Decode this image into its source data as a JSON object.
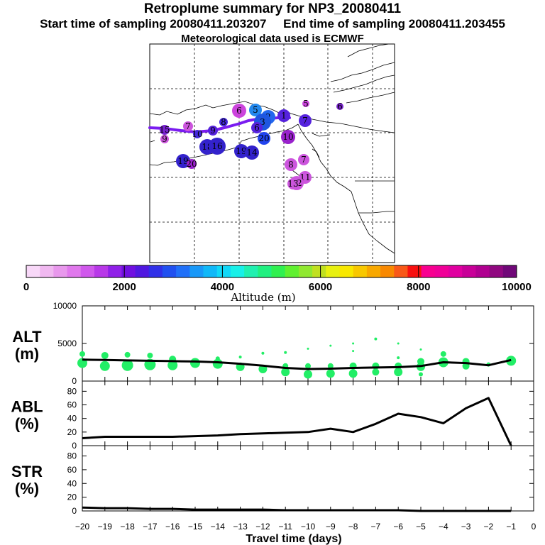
{
  "header": {
    "title": "Retroplume summary for NP3_20080411",
    "start_label": "Start time of sampling 20080411.203207",
    "end_label": "End time of sampling 20080411.203455",
    "met_label": "Meteorological data used is ECMWF"
  },
  "colors": {
    "track": "#7a1cf0",
    "alt_points": "#22ee66",
    "line": "#000000",
    "colorbar": [
      "#f8d8f8",
      "#f0b8f0",
      "#e898ec",
      "#e078ec",
      "#d058ec",
      "#b838e8",
      "#9020e8",
      "#7010e0",
      "#5018e0",
      "#3030e8",
      "#2050f0",
      "#2070f8",
      "#1898f8",
      "#10b8f8",
      "#10d8f8",
      "#18f0e8",
      "#20f0b0",
      "#20f080",
      "#30f050",
      "#60f030",
      "#90e830",
      "#c0e020",
      "#e8f010",
      "#f8e800",
      "#f8c800",
      "#f8a800",
      "#f88800",
      "#f85818",
      "#f81010",
      "#f80090",
      "#f00098",
      "#e000a0",
      "#c80098",
      "#b00090",
      "#900880",
      "#700878"
    ]
  },
  "map": {
    "points": [
      {
        "label": "6",
        "color": "#cc44dd",
        "r": 10
      },
      {
        "label": "5",
        "color": "#2288ee",
        "r": 9
      },
      {
        "label": "5",
        "color": "#cc44dd",
        "r": 5
      },
      {
        "label": "6",
        "color": "#7722cc",
        "r": 5
      },
      {
        "label": "2",
        "color": "#2266ee",
        "r": 10
      },
      {
        "label": "3",
        "color": "#1e56e0",
        "r": 12
      },
      {
        "label": "1",
        "color": "#5522dd",
        "r": 9
      },
      {
        "label": "7",
        "color": "#5522dd",
        "r": 9
      },
      {
        "label": "6",
        "color": "#5522dd",
        "r": 8
      },
      {
        "label": "8",
        "color": "#4428dd",
        "r": 6
      },
      {
        "label": "7",
        "color": "#cc55dd",
        "r": 7
      },
      {
        "label": "15",
        "color": "#7722cc",
        "r": 7
      },
      {
        "label": "9",
        "color": "#cc55dd",
        "r": 6
      },
      {
        "label": "10",
        "color": "#4428dd",
        "r": 6
      },
      {
        "label": "9",
        "color": "#5522dd",
        "r": 7
      },
      {
        "label": "18",
        "color": "#3322cc",
        "r": 11
      },
      {
        "label": "16",
        "color": "#3322cc",
        "r": 12
      },
      {
        "label": "19",
        "color": "#3322cc",
        "r": 10
      },
      {
        "label": "20",
        "color": "#2244ee",
        "r": 9
      },
      {
        "label": "14",
        "color": "#3322cc",
        "r": 10
      },
      {
        "label": "10",
        "color": "#9922cc",
        "r": 10
      },
      {
        "label": "8",
        "color": "#cc55dd",
        "r": 9
      },
      {
        "label": "7",
        "color": "#cc55dd",
        "r": 8
      },
      {
        "label": "11",
        "color": "#cc55dd",
        "r": 9
      },
      {
        "label": "12",
        "color": "#cc55dd",
        "r": 10
      },
      {
        "label": "13",
        "color": "#cc55dd",
        "r": 8
      },
      {
        "label": "19",
        "color": "#3322cc",
        "r": 10
      },
      {
        "label": "20",
        "color": "#9922cc",
        "r": 7
      }
    ]
  },
  "colorbar": {
    "ticks": [
      "0",
      "2000",
      "4000",
      "6000",
      "8000",
      "10000"
    ],
    "label": "Altitude (m)"
  },
  "chart_data": [
    {
      "type": "line",
      "panel": "ALT",
      "ylabel_line1": "ALT",
      "ylabel_line2": "(m)",
      "x": [
        -20,
        -19,
        -18,
        -17,
        -16,
        -15,
        -14,
        -13,
        -12,
        -11,
        -10,
        -9,
        -8,
        -7,
        -6,
        -5,
        -4,
        -3,
        -2,
        -1
      ],
      "values": [
        2850,
        2800,
        2750,
        2700,
        2650,
        2600,
        2500,
        2300,
        2050,
        1750,
        1600,
        1650,
        1750,
        1800,
        1850,
        2000,
        2500,
        2400,
        2100,
        2800
      ],
      "ylim": [
        0,
        10000
      ],
      "yticks": [
        "0",
        "5000",
        "10000"
      ],
      "scatter": [
        {
          "x": -20,
          "y": 3600,
          "r": 4
        },
        {
          "x": -20,
          "y": 2400,
          "r": 7
        },
        {
          "x": -19,
          "y": 3400,
          "r": 5
        },
        {
          "x": -19,
          "y": 2000,
          "r": 7
        },
        {
          "x": -18,
          "y": 3500,
          "r": 4
        },
        {
          "x": -18,
          "y": 2100,
          "r": 8
        },
        {
          "x": -17,
          "y": 3400,
          "r": 4
        },
        {
          "x": -17,
          "y": 2200,
          "r": 8
        },
        {
          "x": -16,
          "y": 2900,
          "r": 5
        },
        {
          "x": -16,
          "y": 2100,
          "r": 7
        },
        {
          "x": -15,
          "y": 2400,
          "r": 7
        },
        {
          "x": -14,
          "y": 3000,
          "r": 3
        },
        {
          "x": -14,
          "y": 2300,
          "r": 7
        },
        {
          "x": -13,
          "y": 3200,
          "r": 2
        },
        {
          "x": -13,
          "y": 1900,
          "r": 6
        },
        {
          "x": -12,
          "y": 3700,
          "r": 2
        },
        {
          "x": -12,
          "y": 1600,
          "r": 6
        },
        {
          "x": -11,
          "y": 3800,
          "r": 2
        },
        {
          "x": -11,
          "y": 2000,
          "r": 4
        },
        {
          "x": -11,
          "y": 1200,
          "r": 6
        },
        {
          "x": -10,
          "y": 4300,
          "r": 1.5
        },
        {
          "x": -10,
          "y": 2000,
          "r": 4
        },
        {
          "x": -10,
          "y": 900,
          "r": 6
        },
        {
          "x": -9,
          "y": 4700,
          "r": 1.5
        },
        {
          "x": -9,
          "y": 2000,
          "r": 4
        },
        {
          "x": -9,
          "y": 1000,
          "r": 6
        },
        {
          "x": -8,
          "y": 5000,
          "r": 1.5
        },
        {
          "x": -8,
          "y": 4000,
          "r": 1.5
        },
        {
          "x": -8,
          "y": 2000,
          "r": 5
        },
        {
          "x": -8,
          "y": 1000,
          "r": 6
        },
        {
          "x": -7,
          "y": 5600,
          "r": 2
        },
        {
          "x": -7,
          "y": 2000,
          "r": 5
        },
        {
          "x": -7,
          "y": 1200,
          "r": 5
        },
        {
          "x": -6,
          "y": 5000,
          "r": 1.5
        },
        {
          "x": -6,
          "y": 3100,
          "r": 2
        },
        {
          "x": -6,
          "y": 2000,
          "r": 5
        },
        {
          "x": -6,
          "y": 1200,
          "r": 6
        },
        {
          "x": -5,
          "y": 4200,
          "r": 1.5
        },
        {
          "x": -5,
          "y": 2600,
          "r": 5
        },
        {
          "x": -5,
          "y": 1900,
          "r": 6
        },
        {
          "x": -5,
          "y": 900,
          "r": 3
        },
        {
          "x": -4,
          "y": 3600,
          "r": 4
        },
        {
          "x": -4,
          "y": 2500,
          "r": 7
        },
        {
          "x": -3,
          "y": 2600,
          "r": 5
        },
        {
          "x": -3,
          "y": 2000,
          "r": 5
        },
        {
          "x": -2,
          "y": 2200,
          "r": 3
        },
        {
          "x": -1,
          "y": 2700,
          "r": 7
        }
      ]
    },
    {
      "type": "line",
      "panel": "ABL",
      "ylabel_line1": "ABL",
      "ylabel_line2": "(%)",
      "x": [
        -20,
        -19,
        -18,
        -17,
        -16,
        -15,
        -14,
        -13,
        -12,
        -11,
        -10,
        -9,
        -8,
        -7,
        -6,
        -5,
        -4,
        -3,
        -2,
        -1
      ],
      "values": [
        11,
        13,
        13,
        13,
        13,
        14,
        15,
        17,
        18,
        19,
        20,
        25,
        20,
        32,
        47,
        42,
        33,
        55,
        70,
        0
      ],
      "ylim": [
        0,
        95
      ],
      "yticks": [
        "0",
        "20",
        "40",
        "60",
        "80"
      ]
    },
    {
      "type": "line",
      "panel": "STR",
      "ylabel_line1": "STR",
      "ylabel_line2": "(%)",
      "x": [
        -20,
        -19,
        -18,
        -17,
        -16,
        -15,
        -14,
        -13,
        -12,
        -11,
        -10,
        -9,
        -8,
        -7,
        -6,
        -5,
        -4,
        -3,
        -2,
        -1
      ],
      "values": [
        5,
        4,
        4,
        3,
        3,
        2,
        2,
        2,
        2,
        1,
        1,
        1,
        1,
        1,
        1,
        0,
        0,
        0,
        0,
        0
      ],
      "ylim": [
        0,
        95
      ],
      "yticks": [
        "0",
        "20",
        "40",
        "60",
        "80"
      ],
      "xlabel": "Travel time (days)",
      "xticks": [
        "−20",
        "−19",
        "−18",
        "−17",
        "−16",
        "−15",
        "−14",
        "−13",
        "−12",
        "−11",
        "−10",
        "−9",
        "−8",
        "−7",
        "−6",
        "−5",
        "−4",
        "−3",
        "−2",
        "−1",
        "0"
      ]
    }
  ]
}
